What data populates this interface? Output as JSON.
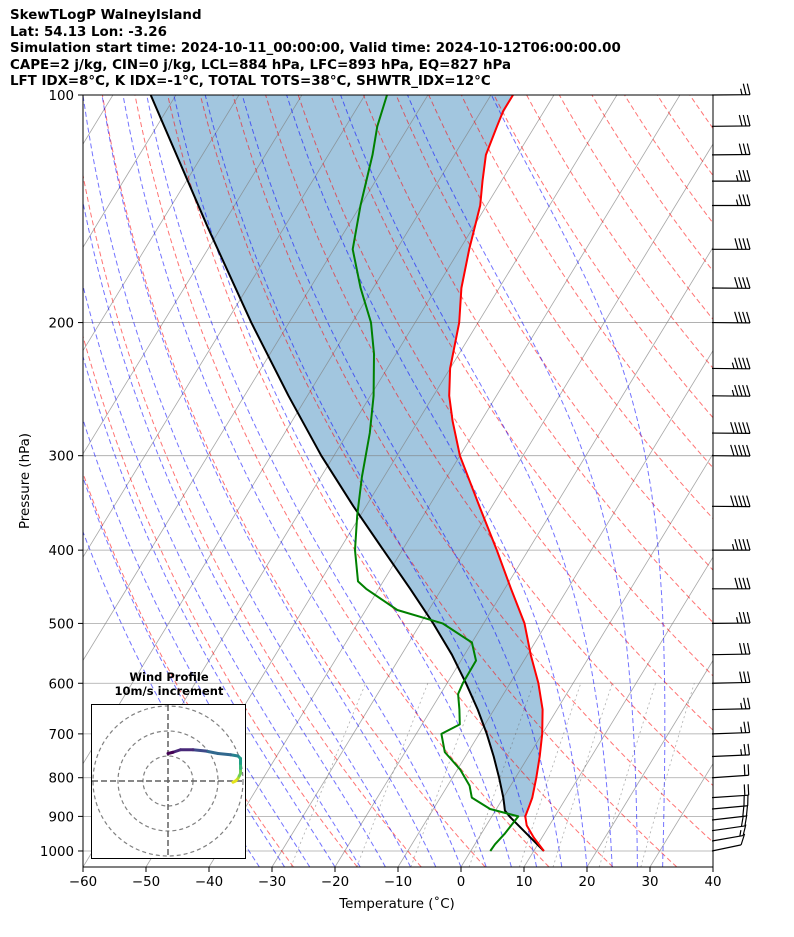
{
  "header": {
    "title": "SkewTLogP WalneyIsland",
    "location": "Lat: 54.13   Lon: -3.26",
    "times": "Simulation start time: 2024-10-11_00:00:00, Valid time: 2024-10-12T06:00:00.00",
    "params": "CAPE=2 j/kg, CIN=0 j/kg, LCL=884 hPa, LFC=893 hPa, EQ=827 hPa",
    "indices": "LFT IDX=8°C, K IDX=-1°C, TOTAL TOTS=38°C, SHWTR_IDX=12°C"
  },
  "colors": {
    "temperature": "#ff0000",
    "dewpoint": "#008000",
    "parcel": "#000000",
    "cape_fill": "#a2c6df",
    "dry_adiabat": "#ff0000",
    "moist_adiabat": "#0000ff",
    "mixing_ratio": "#0000ff",
    "isotherm": "#808080"
  },
  "chart_data": {
    "type": "line",
    "title": "SkewTLogP WalneyIsland",
    "xlabel": "Temperature (˚C)",
    "ylabel": "Pressure (hPa)",
    "xlim": [
      -60,
      40
    ],
    "ylim": [
      1050,
      100
    ],
    "y_scale": "log",
    "grid": true,
    "xticks": [
      "−60",
      "−50",
      "−40",
      "−30",
      "−20",
      "−10",
      "0",
      "10",
      "20",
      "30",
      "40"
    ],
    "yticks": [
      "100",
      "200",
      "300",
      "400",
      "500",
      "600",
      "700",
      "800",
      "900",
      "1000"
    ],
    "series": [
      {
        "kind": "temperature",
        "pressure_hpa": [
          1000,
          960,
          925,
          900,
          870,
          850,
          800,
          750,
          700,
          650,
          600,
          550,
          500,
          450,
          400,
          350,
          300,
          270,
          250,
          230,
          200,
          180,
          160,
          140,
          130,
          120,
          110,
          105,
          100
        ],
        "temperature_c": [
          11.6,
          8.7,
          6.4,
          5.3,
          4.9,
          4.6,
          3.3,
          1.8,
          0,
          -2.3,
          -5.5,
          -9.5,
          -13.5,
          -19,
          -25,
          -32,
          -40,
          -44.5,
          -47.5,
          -50,
          -53,
          -56,
          -58.5,
          -61,
          -63,
          -65,
          -66,
          -66.5,
          -66.5
        ]
      },
      {
        "kind": "dewpoint",
        "pressure_hpa": [
          1000,
          980,
          950,
          900,
          880,
          850,
          820,
          780,
          740,
          700,
          680,
          650,
          620,
          600,
          560,
          530,
          500,
          480,
          450,
          440,
          400,
          360,
          320,
          280,
          250,
          220,
          200,
          180,
          160,
          140,
          120,
          110,
          100
        ],
        "dewpoint_c": [
          3.1,
          3.2,
          3.7,
          4.2,
          -1,
          -5,
          -6.5,
          -9.6,
          -13.7,
          -16,
          -14,
          -15.5,
          -17.2,
          -17.5,
          -17.6,
          -20,
          -26.5,
          -35,
          -42,
          -44,
          -47.5,
          -50.5,
          -53.5,
          -56.5,
          -59.5,
          -63.5,
          -67,
          -72,
          -77,
          -80,
          -83,
          -85,
          -86.5
        ]
      },
      {
        "kind": "parcel",
        "pressure_hpa": [
          1000,
          950,
          900,
          884,
          870,
          850,
          800,
          750,
          700,
          650,
          600,
          550,
          500,
          450,
          400,
          350,
          300,
          250,
          200,
          150,
          100
        ],
        "temperature_c": [
          11.6,
          7.3,
          2.8,
          1.5,
          0.9,
          0,
          -2.6,
          -5.5,
          -8.8,
          -12.6,
          -17,
          -22,
          -28,
          -35,
          -43,
          -52,
          -62,
          -73,
          -86,
          -102,
          -124
        ]
      }
    ],
    "wind_barbs": {
      "pressure_hpa": [
        1000,
        970,
        940,
        910,
        880,
        850,
        800,
        750,
        700,
        650,
        600,
        550,
        500,
        450,
        400,
        350,
        300,
        280,
        250,
        230,
        200,
        180,
        160,
        140,
        130,
        120,
        110,
        100
      ],
      "speed_kt": [
        10,
        15,
        20,
        20,
        20,
        20,
        20,
        25,
        25,
        25,
        30,
        30,
        35,
        40,
        45,
        50,
        50,
        50,
        45,
        45,
        40,
        40,
        40,
        35,
        35,
        30,
        30,
        25
      ],
      "direction_deg": [
        230,
        235,
        240,
        245,
        250,
        255,
        255,
        260,
        262,
        265,
        265,
        266,
        268,
        270,
        270,
        272,
        272,
        272,
        272,
        272,
        272,
        272,
        270,
        270,
        270,
        268,
        268,
        268
      ]
    },
    "hodograph": {
      "title": "Wind Profile",
      "subtitle": "10m/s increment",
      "ring_increment_ms": 10,
      "u_ms": [
        26,
        27,
        28,
        28.5,
        29,
        29,
        29,
        29,
        28,
        25,
        20,
        15,
        10,
        5,
        2,
        0
      ],
      "v_ms": [
        -0.5,
        0,
        1,
        2,
        3,
        5,
        7,
        9,
        10,
        10.5,
        11,
        12,
        12.5,
        12.5,
        11.5,
        11
      ]
    }
  }
}
